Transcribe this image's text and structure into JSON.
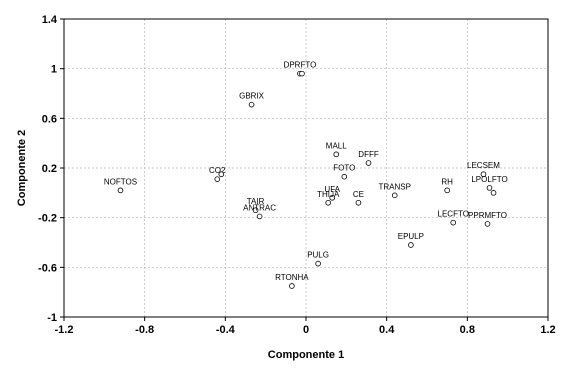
{
  "chart_data": {
    "type": "scatter",
    "title": "",
    "xlabel": "Componente 1",
    "ylabel": "Componente 2",
    "xlim": [
      -1.2,
      1.2
    ],
    "ylim": [
      -1,
      1.4
    ],
    "xticks": [
      -1.2,
      -0.8,
      -0.4,
      0,
      0.4,
      0.8,
      1.2
    ],
    "yticks": [
      -1,
      -0.6,
      -0.2,
      0.2,
      0.6,
      1,
      1.4
    ],
    "xtick_labels": [
      "-1.2",
      "-0.8",
      "-0.4",
      "0",
      "0.4",
      "0.8",
      "1.2"
    ],
    "ytick_labels": [
      "-1",
      "-0.6",
      "-0.2",
      "0.2",
      "0.6",
      "1",
      "1.4"
    ],
    "grid": true,
    "points": [
      {
        "label": "NOFTOS",
        "x": -0.92,
        "y": 0.02
      },
      {
        "label": "CO2",
        "x": -0.44,
        "y": 0.11
      },
      {
        "label": "",
        "x": -0.42,
        "y": 0.15
      },
      {
        "label": "GBRIX",
        "x": -0.27,
        "y": 0.71
      },
      {
        "label": "DPRFTO",
        "x": -0.03,
        "y": 0.96
      },
      {
        "label": "",
        "x": -0.02,
        "y": 0.96
      },
      {
        "label": "TAIR",
        "x": -0.25,
        "y": -0.14
      },
      {
        "label": "ANTRAC",
        "x": -0.23,
        "y": -0.19
      },
      {
        "label": "MALL",
        "x": 0.15,
        "y": 0.31
      },
      {
        "label": "DFFF",
        "x": 0.31,
        "y": 0.24
      },
      {
        "label": "FOTO",
        "x": 0.19,
        "y": 0.13
      },
      {
        "label": "UFA",
        "x": 0.13,
        "y": -0.04
      },
      {
        "label": "THIJA",
        "x": 0.11,
        "y": -0.08
      },
      {
        "label": "CE",
        "x": 0.26,
        "y": -0.08
      },
      {
        "label": "TRANSP",
        "x": 0.44,
        "y": -0.02
      },
      {
        "label": "RH",
        "x": 0.7,
        "y": 0.02
      },
      {
        "label": "LECSEM",
        "x": 0.88,
        "y": 0.15
      },
      {
        "label": "LPOLFTO",
        "x": 0.91,
        "y": 0.04
      },
      {
        "label": "",
        "x": 0.93,
        "y": 0.0
      },
      {
        "label": "LECFTO",
        "x": 0.73,
        "y": -0.24
      },
      {
        "label": "PPRMFTO",
        "x": 0.9,
        "y": -0.25
      },
      {
        "label": "EPULP",
        "x": 0.52,
        "y": -0.42
      },
      {
        "label": "PULG",
        "x": 0.06,
        "y": -0.57
      },
      {
        "label": "RTONHA",
        "x": -0.07,
        "y": -0.75
      }
    ]
  }
}
